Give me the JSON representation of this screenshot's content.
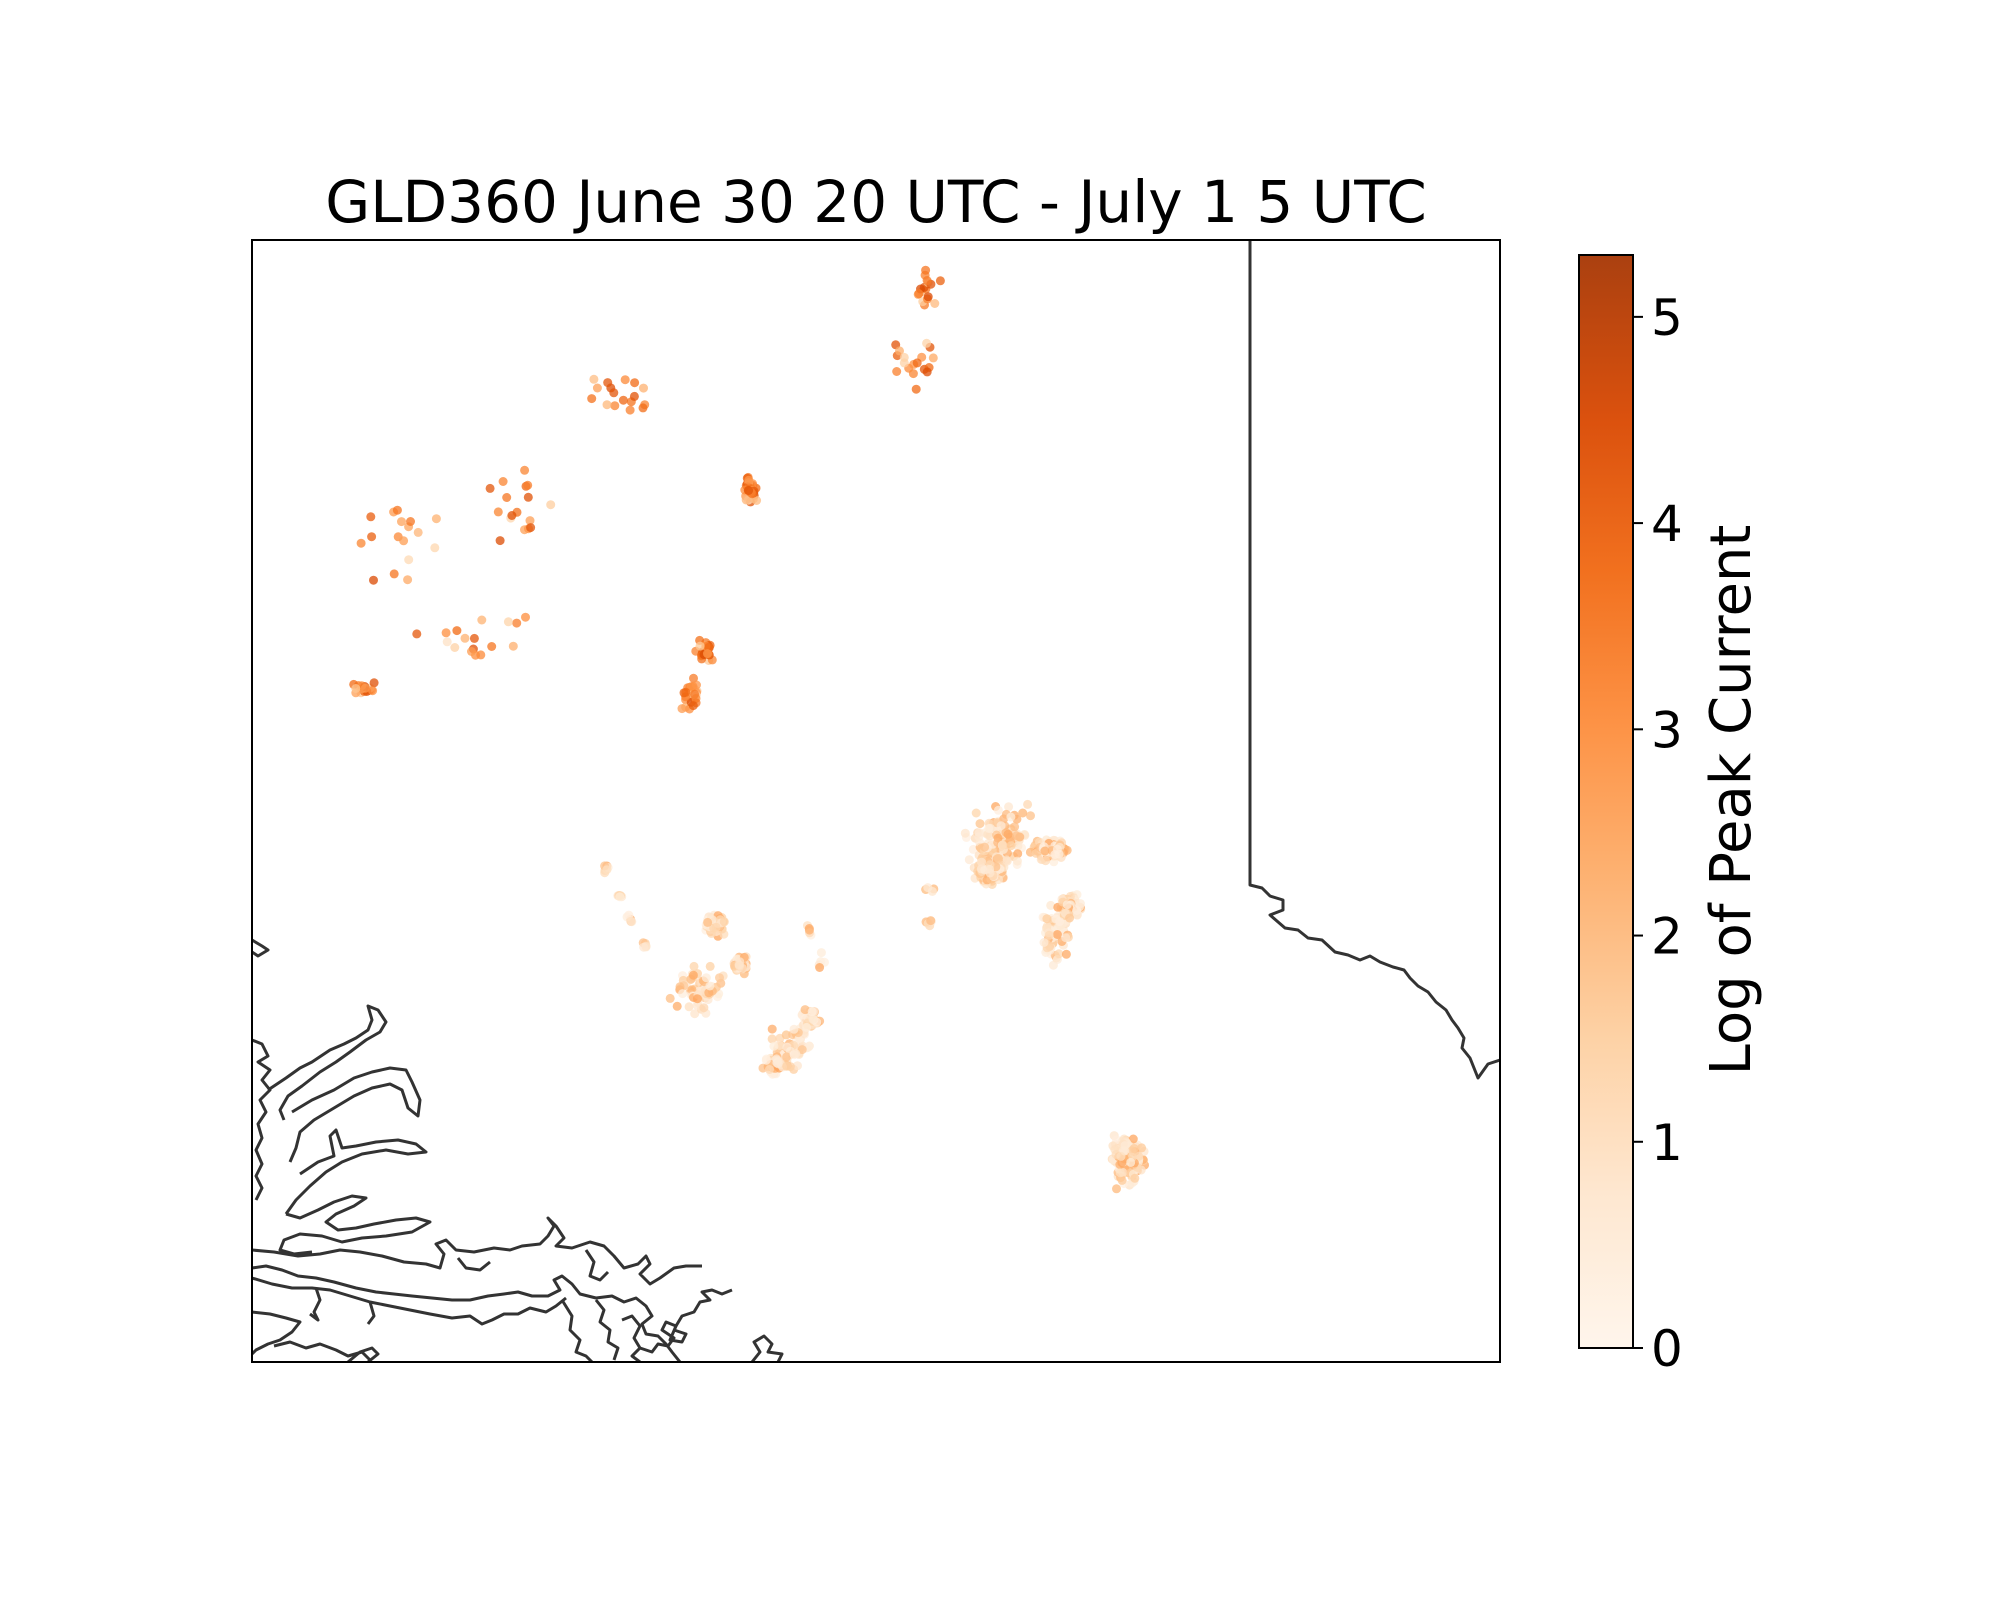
{
  "title": "GLD360 June 30 20 UTC - July 1 5 UTC",
  "colorbar": {
    "label": "Log of Peak Current",
    "min": 0,
    "max": 5.3,
    "ticks": [
      "0",
      "1",
      "2",
      "3",
      "4",
      "5"
    ],
    "colormap": "Oranges",
    "colors": [
      "#fff5eb",
      "#fee6ce",
      "#fdd0a2",
      "#fdae6b",
      "#fd8d3c",
      "#f16913",
      "#d94801",
      "#a63603"
    ],
    "alpha": 0.75
  },
  "map": {
    "features": [
      "coastlines",
      "state-border"
    ],
    "line_color": "#333333",
    "marker": "dot"
  },
  "lightning_clusters": [
    {
      "id": "c1",
      "value_range": [
        0.3,
        2.5
      ],
      "count": 380
    },
    {
      "id": "c2",
      "value_range": [
        0.3,
        2.5
      ],
      "count": 130
    },
    {
      "id": "c3",
      "value_range": [
        0.3,
        2.5
      ],
      "count": 190
    },
    {
      "id": "c4",
      "value_range": [
        0.3,
        2.5
      ],
      "count": 160
    },
    {
      "id": "c5",
      "value_range": [
        0.3,
        2.5
      ],
      "count": 140
    },
    {
      "id": "c6",
      "value_range": [
        0.3,
        2.5
      ],
      "count": 45
    },
    {
      "id": "c7",
      "value_range": [
        0.8,
        4.5
      ],
      "count": 60
    },
    {
      "id": "c8",
      "value_range": [
        0.8,
        4.5
      ],
      "count": 40
    },
    {
      "id": "c9",
      "value_range": [
        0.8,
        4.5
      ],
      "count": 120
    }
  ]
}
